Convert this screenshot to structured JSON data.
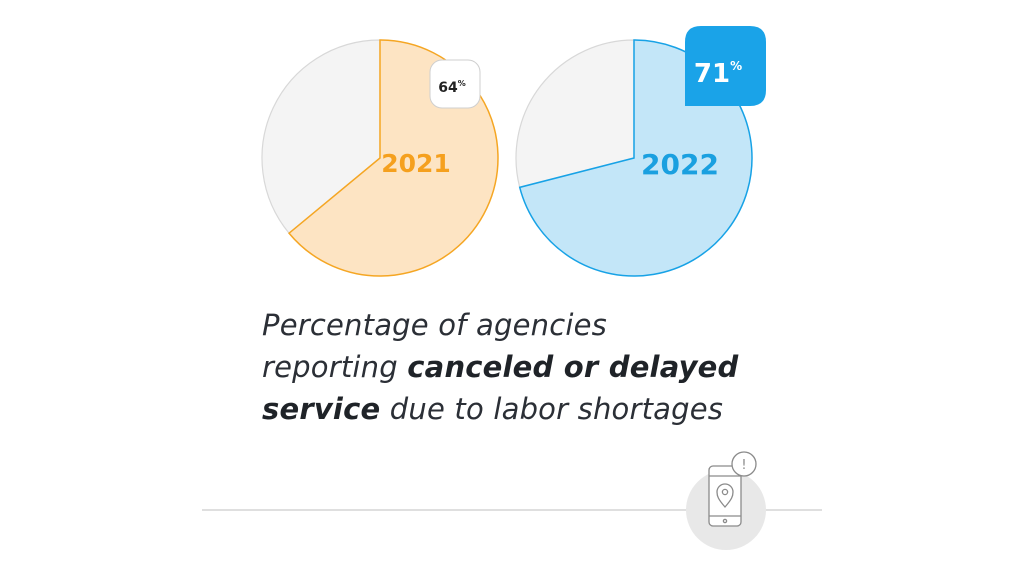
{
  "chart_data": [
    {
      "type": "pie",
      "title": "2021",
      "value": 64,
      "value_label": "64",
      "unit": "%",
      "remainder": 36,
      "colors": {
        "fill": "#fde4c3",
        "stroke": "#f5a623",
        "label": "#f5a01e",
        "rest": "#f4f4f4",
        "rest_stroke": "#d8d8d8"
      }
    },
    {
      "type": "pie",
      "title": "2022",
      "value": 71,
      "value_label": "71",
      "unit": "%",
      "remainder": 29,
      "colors": {
        "fill": "#c3e6f8",
        "stroke": "#17a2e6",
        "label": "#1aa0e0",
        "badge": "#1aa3e8",
        "rest": "#f4f4f4",
        "rest_stroke": "#d8d8d8"
      }
    }
  ],
  "caption": {
    "line1": "Percentage of agencies",
    "line2_start": "reporting ",
    "line2_bold": "canceled or delayed",
    "line3_bold": "service",
    "line3_end": " due to labor shortages"
  },
  "icon": {
    "name": "phone-location-alert-icon",
    "alert_mark": "!"
  },
  "colors": {
    "divider": "#cccccc",
    "icon_circle": "#e8e8e8",
    "icon_stroke": "#8a8a8a"
  }
}
